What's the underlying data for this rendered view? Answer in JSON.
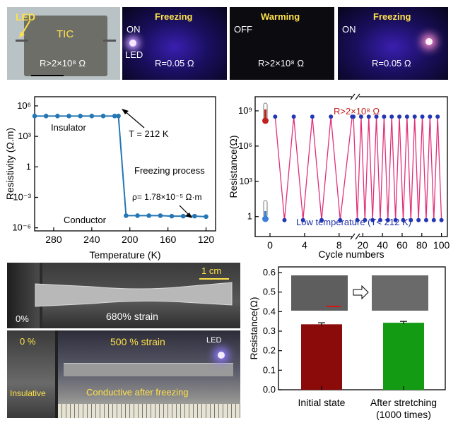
{
  "top_panels": {
    "p1": {
      "led": "LED",
      "tic": "TIC",
      "resistance": "R>2×10⁸ Ω"
    },
    "p2": {
      "title": "Freezing",
      "state": "ON",
      "led": "LED",
      "resistance": "R=0.05 Ω"
    },
    "p3": {
      "title": "Warming",
      "state": "OFF",
      "resistance": "R>2×10⁸ Ω"
    },
    "p4": {
      "title": "Freezing",
      "state": "ON",
      "resistance": "R=0.05 Ω"
    }
  },
  "chart_data": [
    {
      "type": "line",
      "title": "",
      "xlabel": "Temperature (K)",
      "ylabel": "Resistivity (Ω.m)",
      "xlim": [
        300,
        110
      ],
      "x_ticks": [
        280,
        240,
        200,
        160,
        120
      ],
      "y_scale": "log",
      "y_ticks": [
        "10⁶",
        "10³",
        "1",
        "10⁻³",
        "10⁻⁶"
      ],
      "x": [
        300,
        288,
        276,
        264,
        252,
        240,
        228,
        216,
        212,
        204,
        192,
        180,
        168,
        156,
        144,
        132,
        120
      ],
      "y_log10": [
        5.0,
        5.0,
        5.0,
        5.0,
        5.0,
        5.0,
        5.0,
        5.0,
        5.0,
        -4.8,
        -4.8,
        -4.8,
        -4.8,
        -4.85,
        -4.85,
        -4.85,
        -4.9
      ],
      "annotations": {
        "insulator": "Insulator",
        "conductor": "Conductor",
        "temperature": "T = 212 K",
        "process": "Freezing process",
        "rho": "ρ= 1.78×10⁻⁵ Ω·m"
      }
    },
    {
      "type": "line",
      "title": "",
      "xlabel": "Cycle numbers",
      "ylabel": "Resistance(Ω)",
      "xlim": [
        -4,
        102
      ],
      "x_ticks": [
        0,
        4,
        8,
        20,
        40,
        60,
        80,
        100
      ],
      "x_tick_labels": [
        "0",
        "4",
        "8",
        "20",
        "40",
        "60",
        "80",
        "100"
      ],
      "y_scale": "log",
      "y_ticks": [
        "10⁹",
        "10⁶",
        "10³",
        "1"
      ],
      "high_log10": 8.5,
      "low_log10": -0.3,
      "cycles_first_segment": 9,
      "cycles_second_segment": 24,
      "annotations": {
        "high": "R>2×10⁸ Ω",
        "low": "Low temperature (T< 212 K)"
      }
    },
    {
      "type": "bar",
      "title": "",
      "xlabel": "",
      "ylabel": "Resistance(Ω)",
      "ylim": [
        0.0,
        0.6
      ],
      "y_ticks": [
        "0.0",
        "0.1",
        "0.2",
        "0.3",
        "0.4",
        "0.5",
        "0.6"
      ],
      "categories": [
        "Initial state",
        "After stretching\n(1000 times)"
      ],
      "category_line1": [
        "Initial state",
        "After stretching"
      ],
      "category_line2": [
        "",
        "(1000 times)"
      ],
      "values": [
        0.335,
        0.343
      ],
      "errors": [
        0.008,
        0.007
      ],
      "colors": [
        "#8b0a0a",
        "#149b14"
      ]
    }
  ],
  "bottom_photos": {
    "scale": "1 cm",
    "p1": {
      "percent": "0%",
      "strain": "680% strain"
    },
    "p2": {
      "percent": "0 %",
      "strain": "500 % strain",
      "led": "LED",
      "insulative": "Insulative",
      "conductive": "Conductive after freezing"
    }
  }
}
